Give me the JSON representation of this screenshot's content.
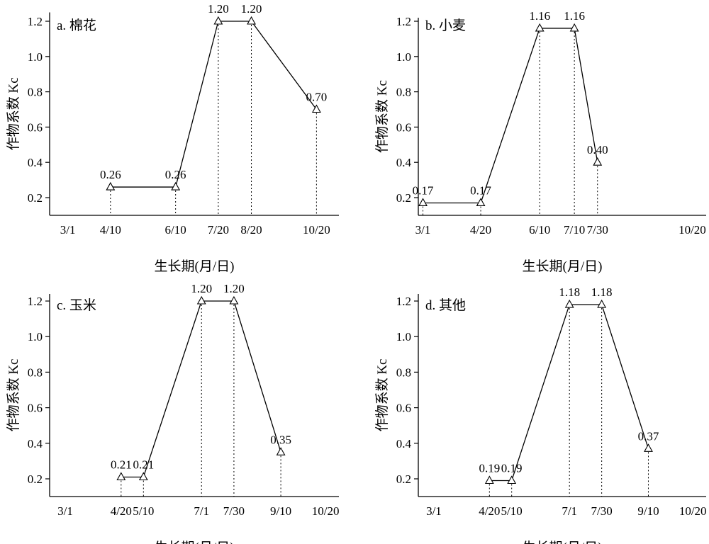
{
  "chart_data": [
    {
      "type": "line",
      "panel_label": "a. 棉花",
      "xlabel": "生长期(月/日)",
      "ylabel": "作物系数 Kc",
      "ylim": [
        0.1,
        1.25
      ],
      "yticks": [
        "0.2",
        "0.4",
        "0.6",
        "0.8",
        "1.0",
        "1.2"
      ],
      "xlim": [
        "2/12",
        "11/10"
      ],
      "xticks": [
        "3/1",
        "4/10",
        "6/10",
        "7/20",
        "8/20",
        "10/20"
      ],
      "grid": false,
      "series": [
        {
          "marker": "triangle",
          "points": [
            {
              "x": "4/10",
              "y": 0.26,
              "label": "0.26"
            },
            {
              "x": "6/10",
              "y": 0.26,
              "label": "0.26"
            },
            {
              "x": "7/20",
              "y": 1.2,
              "label": "1.20"
            },
            {
              "x": "8/20",
              "y": 1.2,
              "label": "1.20"
            },
            {
              "x": "10/20",
              "y": 0.7,
              "label": "0.70"
            }
          ]
        }
      ]
    },
    {
      "type": "line",
      "panel_label": "b. 小麦",
      "xlabel": "生长期(月/日)",
      "ylabel": "作物系数 Kc",
      "ylim": [
        0.1,
        1.22
      ],
      "yticks": [
        "0.2",
        "0.4",
        "0.6",
        "0.8",
        "1.0",
        "1.2"
      ],
      "xlim": [
        "2/25",
        "11/1"
      ],
      "xticks": [
        "3/1",
        "4/20",
        "6/10",
        "7/10",
        "7/30",
        "10/20"
      ],
      "grid": false,
      "series": [
        {
          "marker": "triangle",
          "points": [
            {
              "x": "3/1",
              "y": 0.17,
              "label": "0.17"
            },
            {
              "x": "4/20",
              "y": 0.17,
              "label": "0.17"
            },
            {
              "x": "6/10",
              "y": 1.16,
              "label": "1.16"
            },
            {
              "x": "7/10",
              "y": 1.16,
              "label": "1.16"
            },
            {
              "x": "7/30",
              "y": 0.4,
              "label": "0.40"
            }
          ]
        }
      ]
    },
    {
      "type": "line",
      "panel_label": "c. 玉米",
      "xlabel": "生长期(月/日)",
      "ylabel": "作物系数 Kc",
      "ylim": [
        0.1,
        1.24
      ],
      "yticks": [
        "0.2",
        "0.4",
        "0.6",
        "0.8",
        "1.0",
        "1.2"
      ],
      "xlim": [
        "2/15",
        "11/1"
      ],
      "xticks": [
        "3/1",
        "4/20",
        "5/10",
        "7/1",
        "7/30",
        "9/10",
        "10/20"
      ],
      "grid": false,
      "series": [
        {
          "marker": "triangle",
          "points": [
            {
              "x": "4/20",
              "y": 0.21,
              "label": "0.21"
            },
            {
              "x": "5/10",
              "y": 0.21,
              "label": "0.21"
            },
            {
              "x": "7/1",
              "y": 1.2,
              "label": "1.20"
            },
            {
              "x": "7/30",
              "y": 1.2,
              "label": "1.20"
            },
            {
              "x": "9/10",
              "y": 0.35,
              "label": "0.35"
            }
          ]
        }
      ]
    },
    {
      "type": "line",
      "panel_label": "d. 其他",
      "xlabel": "生长期(月/日)",
      "ylabel": "作物系数 Kc",
      "ylim": [
        0.1,
        1.24
      ],
      "yticks": [
        "0.2",
        "0.4",
        "0.6",
        "0.8",
        "1.0",
        "1.2"
      ],
      "xlim": [
        "2/15",
        "11/1"
      ],
      "xticks": [
        "3/1",
        "4/20",
        "5/10",
        "7/1",
        "7/30",
        "9/10",
        "10/20"
      ],
      "grid": false,
      "series": [
        {
          "marker": "triangle",
          "points": [
            {
              "x": "4/20",
              "y": 0.19,
              "label": "0.19"
            },
            {
              "x": "5/10",
              "y": 0.19,
              "label": "0.19"
            },
            {
              "x": "7/1",
              "y": 1.18,
              "label": "1.18"
            },
            {
              "x": "7/30",
              "y": 1.18,
              "label": "1.18"
            },
            {
              "x": "9/10",
              "y": 0.37,
              "label": "0.37"
            }
          ]
        }
      ]
    }
  ]
}
